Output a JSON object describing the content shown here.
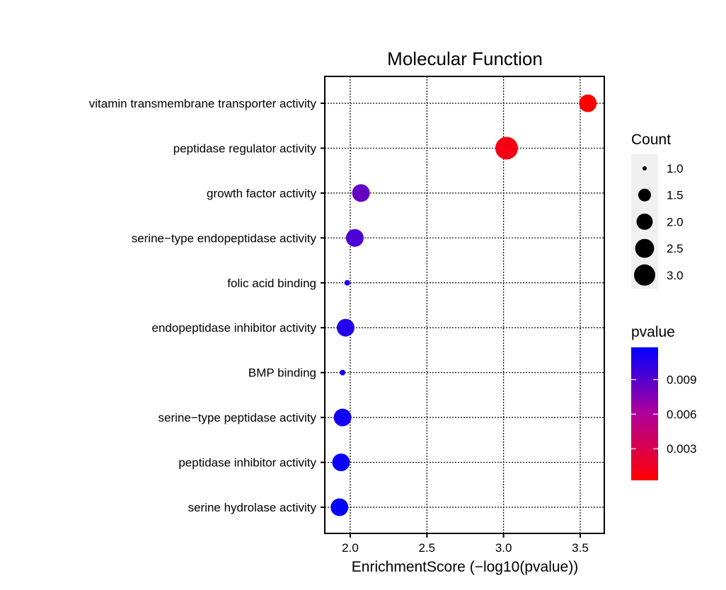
{
  "chart_data": {
    "type": "scatter",
    "title": "Molecular Function",
    "xlabel": "EnrichmentScore (−log10(pvalue))",
    "ylabel": "",
    "xlim": [
      1.834,
      3.657
    ],
    "xticks": [
      2.0,
      2.5,
      3.0,
      3.5
    ],
    "xtick_labels": [
      "2.0",
      "2.5",
      "3.0",
      "3.5"
    ],
    "grid": true,
    "categories": [
      "vitamin transmembrane transporter activity",
      "peptidase regulator activity",
      "growth factor activity",
      "serine−type endopeptidase activity",
      "folic acid binding",
      "endopeptidase inhibitor activity",
      "BMP binding",
      "serine−type peptidase activity",
      "peptidase inhibitor activity",
      "serine hydrolase activity"
    ],
    "points": [
      {
        "term": "vitamin transmembrane transporter activity",
        "x": 3.55,
        "count": 2,
        "pvalue": 0.00028
      },
      {
        "term": "peptidase regulator activity",
        "x": 3.02,
        "count": 3,
        "pvalue": 0.00095
      },
      {
        "term": "growth factor activity",
        "x": 2.07,
        "count": 2,
        "pvalue": 0.0085
      },
      {
        "term": "serine−type endopeptidase activity",
        "x": 2.03,
        "count": 2,
        "pvalue": 0.0093
      },
      {
        "term": "folic acid binding",
        "x": 1.98,
        "count": 1,
        "pvalue": 0.0105
      },
      {
        "term": "endopeptidase inhibitor activity",
        "x": 1.97,
        "count": 2,
        "pvalue": 0.0107
      },
      {
        "term": "BMP binding",
        "x": 1.95,
        "count": 1,
        "pvalue": 0.0112
      },
      {
        "term": "serine−type peptidase activity",
        "x": 1.95,
        "count": 2,
        "pvalue": 0.0112
      },
      {
        "term": "peptidase inhibitor activity",
        "x": 1.94,
        "count": 2,
        "pvalue": 0.0115
      },
      {
        "term": "serine hydrolase activity",
        "x": 1.93,
        "count": 2,
        "pvalue": 0.0117
      }
    ],
    "size_legend": {
      "title": "Count",
      "values": [
        1.0,
        1.5,
        2.0,
        2.5,
        3.0
      ],
      "labels": [
        "1.0",
        "1.5",
        "2.0",
        "2.5",
        "3.0"
      ]
    },
    "color_legend": {
      "title": "pvalue",
      "range": [
        0.00025,
        0.0118
      ],
      "ticks": [
        0.003,
        0.006,
        0.009
      ],
      "labels": [
        "0.003",
        "0.006",
        "0.009"
      ],
      "low_color": "#ff0000",
      "high_color": "#0000ff"
    },
    "legend_placement": "right"
  }
}
